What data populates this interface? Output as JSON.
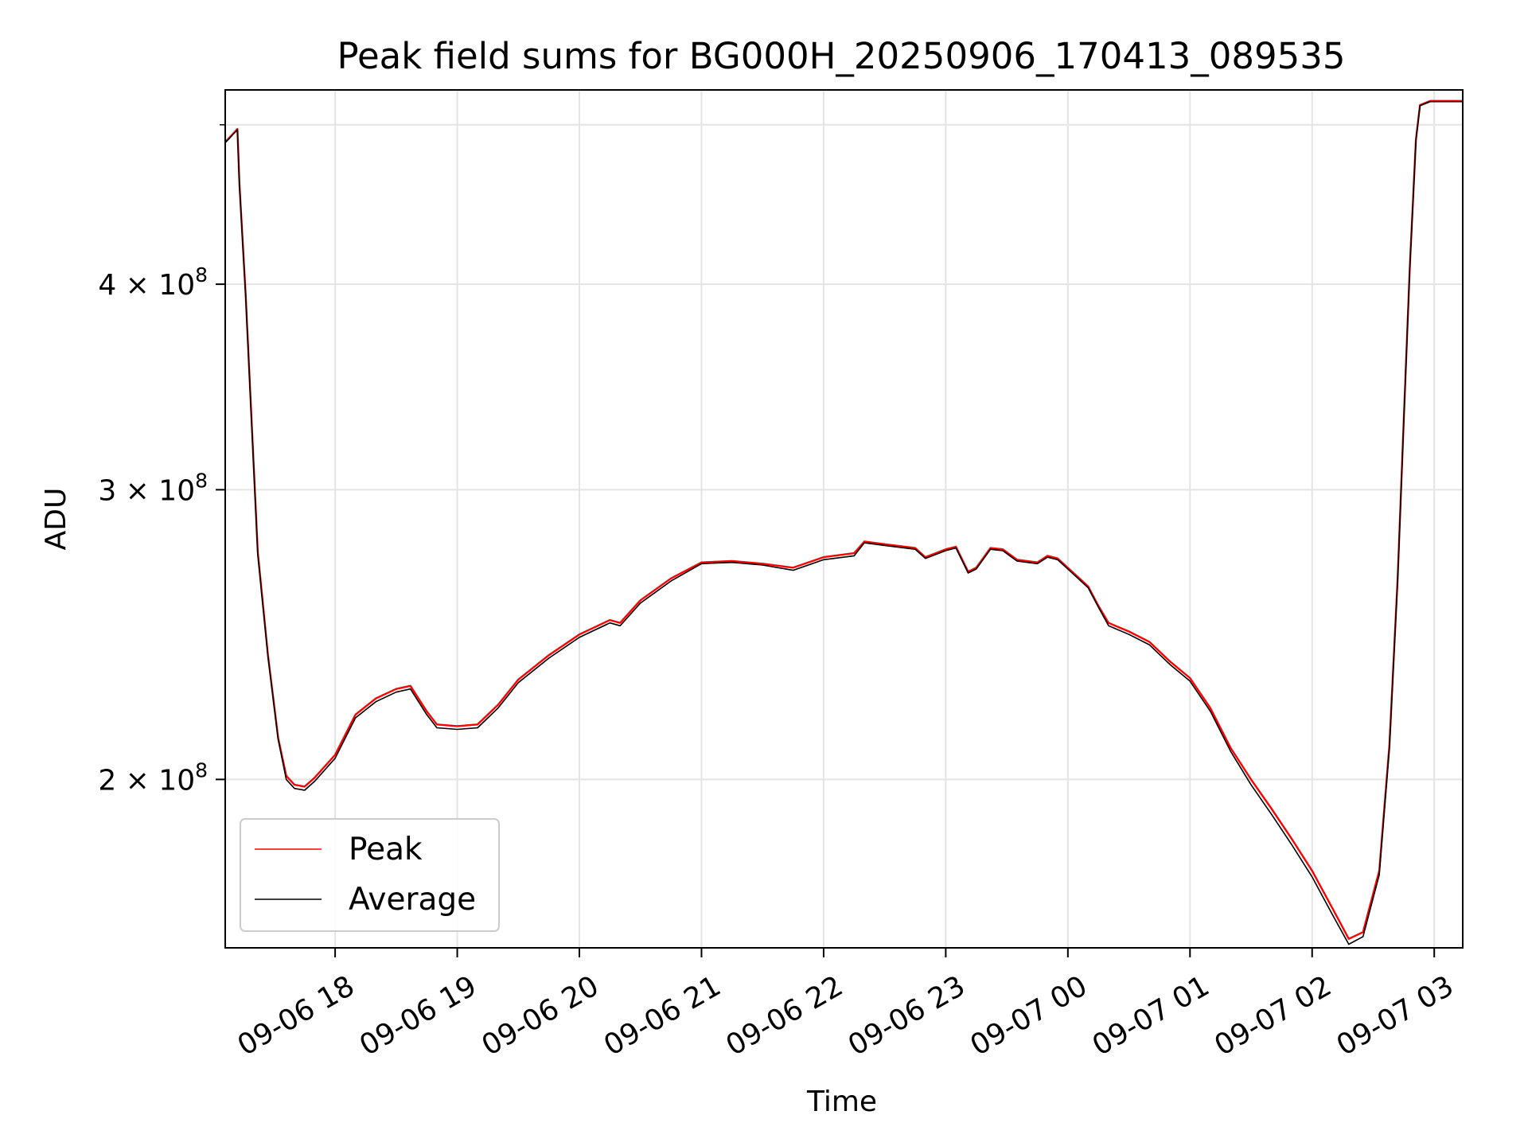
{
  "chart_data": {
    "type": "line",
    "title": "Peak field sums for BG000H_20250906_170413_089535",
    "xlabel": "Time",
    "ylabel": "ADU",
    "y_scale": "log",
    "ylim": [
      158000000,
      525000000
    ],
    "xlim": [
      "2025-09-06 17:06",
      "2025-09-07 03:14"
    ],
    "grid": true,
    "legend_position": "lower-left",
    "x_ticks": [
      {
        "t": "2025-09-06 18:00",
        "label": "09-06 18"
      },
      {
        "t": "2025-09-06 19:00",
        "label": "09-06 19"
      },
      {
        "t": "2025-09-06 20:00",
        "label": "09-06 20"
      },
      {
        "t": "2025-09-06 21:00",
        "label": "09-06 21"
      },
      {
        "t": "2025-09-06 22:00",
        "label": "09-06 22"
      },
      {
        "t": "2025-09-06 23:00",
        "label": "09-06 23"
      },
      {
        "t": "2025-09-07 00:00",
        "label": "09-07 00"
      },
      {
        "t": "2025-09-07 01:00",
        "label": "09-07 01"
      },
      {
        "t": "2025-09-07 02:00",
        "label": "09-07 02"
      },
      {
        "t": "2025-09-07 03:00",
        "label": "09-07 03"
      }
    ],
    "y_ticks": [
      {
        "value": 200000000,
        "mantissa": "2",
        "exponent": "8"
      },
      {
        "value": 300000000,
        "mantissa": "3",
        "exponent": "8"
      },
      {
        "value": 400000000,
        "mantissa": "4",
        "exponent": "8"
      }
    ],
    "y_minor_ticks": [
      500000000
    ],
    "series": [
      {
        "name": "Peak",
        "color": "#ff0000",
        "points": [
          [
            "2025-09-06 17:06",
            488000000
          ],
          [
            "2025-09-06 17:12",
            497000000
          ],
          [
            "2025-09-06 17:13",
            460000000
          ],
          [
            "2025-09-06 17:16",
            395000000
          ],
          [
            "2025-09-06 17:19",
            330000000
          ],
          [
            "2025-09-06 17:22",
            275000000
          ],
          [
            "2025-09-06 17:27",
            238000000
          ],
          [
            "2025-09-06 17:32",
            212000000
          ],
          [
            "2025-09-06 17:36",
            201000000
          ],
          [
            "2025-09-06 17:40",
            198500000
          ],
          [
            "2025-09-06 17:45",
            198000000
          ],
          [
            "2025-09-06 17:50",
            200500000
          ],
          [
            "2025-09-06 18:00",
            207000000
          ],
          [
            "2025-09-06 18:10",
            219000000
          ],
          [
            "2025-09-06 18:20",
            224000000
          ],
          [
            "2025-09-06 18:30",
            227000000
          ],
          [
            "2025-09-06 18:37",
            228000000
          ],
          [
            "2025-09-06 18:45",
            220000000
          ],
          [
            "2025-09-06 18:50",
            216000000
          ],
          [
            "2025-09-06 19:00",
            215500000
          ],
          [
            "2025-09-06 19:10",
            216000000
          ],
          [
            "2025-09-06 19:20",
            222000000
          ],
          [
            "2025-09-06 19:30",
            230000000
          ],
          [
            "2025-09-06 19:45",
            238000000
          ],
          [
            "2025-09-06 20:00",
            245000000
          ],
          [
            "2025-09-06 20:15",
            250000000
          ],
          [
            "2025-09-06 20:20",
            249000000
          ],
          [
            "2025-09-06 20:30",
            257000000
          ],
          [
            "2025-09-06 20:45",
            265000000
          ],
          [
            "2025-09-06 21:00",
            271000000
          ],
          [
            "2025-09-06 21:15",
            271500000
          ],
          [
            "2025-09-06 21:30",
            270500000
          ],
          [
            "2025-09-06 21:45",
            269000000
          ],
          [
            "2025-09-06 22:00",
            273000000
          ],
          [
            "2025-09-06 22:15",
            274500000
          ],
          [
            "2025-09-06 22:20",
            279000000
          ],
          [
            "2025-09-06 22:30",
            278000000
          ],
          [
            "2025-09-06 22:45",
            276500000
          ],
          [
            "2025-09-06 22:50",
            273000000
          ],
          [
            "2025-09-06 23:00",
            276000000
          ],
          [
            "2025-09-06 23:05",
            277000000
          ],
          [
            "2025-09-06 23:11",
            267500000
          ],
          [
            "2025-09-06 23:15",
            269000000
          ],
          [
            "2025-09-06 23:22",
            276500000
          ],
          [
            "2025-09-06 23:28",
            276000000
          ],
          [
            "2025-09-06 23:35",
            272000000
          ],
          [
            "2025-09-06 23:45",
            271000000
          ],
          [
            "2025-09-06 23:50",
            273500000
          ],
          [
            "2025-09-06 23:55",
            272500000
          ],
          [
            "2025-09-07 00:05",
            265500000
          ],
          [
            "2025-09-07 00:10",
            262000000
          ],
          [
            "2025-09-07 00:15",
            255000000
          ],
          [
            "2025-09-07 00:20",
            249000000
          ],
          [
            "2025-09-07 00:30",
            246000000
          ],
          [
            "2025-09-07 00:40",
            242500000
          ],
          [
            "2025-09-07 00:50",
            236000000
          ],
          [
            "2025-09-07 01:00",
            230500000
          ],
          [
            "2025-09-07 01:10",
            221000000
          ],
          [
            "2025-09-07 01:20",
            209000000
          ],
          [
            "2025-09-07 01:30",
            200000000
          ],
          [
            "2025-09-07 01:40",
            192000000
          ],
          [
            "2025-09-07 01:50",
            184000000
          ],
          [
            "2025-09-07 02:00",
            176000000
          ],
          [
            "2025-09-07 02:10",
            167000000
          ],
          [
            "2025-09-07 02:18",
            160000000
          ],
          [
            "2025-09-07 02:25",
            161500000
          ],
          [
            "2025-09-07 02:33",
            176000000
          ],
          [
            "2025-09-07 02:38",
            210000000
          ],
          [
            "2025-09-07 02:42",
            265000000
          ],
          [
            "2025-09-07 02:45",
            330000000
          ],
          [
            "2025-09-07 02:48",
            410000000
          ],
          [
            "2025-09-07 02:51",
            490000000
          ],
          [
            "2025-09-07 02:53",
            514000000
          ],
          [
            "2025-09-07 02:58",
            517000000
          ],
          [
            "2025-09-07 03:14",
            517000000
          ]
        ]
      },
      {
        "name": "Average",
        "color": "#000000",
        "points": [
          [
            "2025-09-06 17:06",
            487500000
          ],
          [
            "2025-09-06 17:12",
            496500000
          ],
          [
            "2025-09-06 17:13",
            459000000
          ],
          [
            "2025-09-06 17:16",
            394000000
          ],
          [
            "2025-09-06 17:19",
            329000000
          ],
          [
            "2025-09-06 17:22",
            274000000
          ],
          [
            "2025-09-06 17:27",
            237500000
          ],
          [
            "2025-09-06 17:32",
            211500000
          ],
          [
            "2025-09-06 17:36",
            200000000
          ],
          [
            "2025-09-06 17:40",
            197500000
          ],
          [
            "2025-09-06 17:45",
            197000000
          ],
          [
            "2025-09-06 17:50",
            199500000
          ],
          [
            "2025-09-06 18:00",
            206000000
          ],
          [
            "2025-09-06 18:10",
            218000000
          ],
          [
            "2025-09-06 18:20",
            223000000
          ],
          [
            "2025-09-06 18:30",
            226000000
          ],
          [
            "2025-09-06 18:37",
            227000000
          ],
          [
            "2025-09-06 18:45",
            219000000
          ],
          [
            "2025-09-06 18:50",
            215000000
          ],
          [
            "2025-09-06 19:00",
            214500000
          ],
          [
            "2025-09-06 19:10",
            215000000
          ],
          [
            "2025-09-06 19:20",
            221000000
          ],
          [
            "2025-09-06 19:30",
            229000000
          ],
          [
            "2025-09-06 19:45",
            237000000
          ],
          [
            "2025-09-06 20:00",
            244000000
          ],
          [
            "2025-09-06 20:15",
            249000000
          ],
          [
            "2025-09-06 20:20",
            248000000
          ],
          [
            "2025-09-06 20:30",
            256000000
          ],
          [
            "2025-09-06 20:45",
            264000000
          ],
          [
            "2025-09-06 21:00",
            270500000
          ],
          [
            "2025-09-06 21:15",
            271000000
          ],
          [
            "2025-09-06 21:30",
            270000000
          ],
          [
            "2025-09-06 21:45",
            268000000
          ],
          [
            "2025-09-06 22:00",
            272000000
          ],
          [
            "2025-09-06 22:15",
            273500000
          ],
          [
            "2025-09-06 22:20",
            278500000
          ],
          [
            "2025-09-06 22:30",
            277500000
          ],
          [
            "2025-09-06 22:45",
            276000000
          ],
          [
            "2025-09-06 22:50",
            272500000
          ],
          [
            "2025-09-06 23:00",
            275500000
          ],
          [
            "2025-09-06 23:05",
            276500000
          ],
          [
            "2025-09-06 23:11",
            267000000
          ],
          [
            "2025-09-06 23:15",
            268500000
          ],
          [
            "2025-09-06 23:22",
            276000000
          ],
          [
            "2025-09-06 23:28",
            275500000
          ],
          [
            "2025-09-06 23:35",
            271500000
          ],
          [
            "2025-09-06 23:45",
            270500000
          ],
          [
            "2025-09-06 23:50",
            273000000
          ],
          [
            "2025-09-06 23:55",
            272000000
          ],
          [
            "2025-09-07 00:05",
            265000000
          ],
          [
            "2025-09-07 00:10",
            261500000
          ],
          [
            "2025-09-07 00:15",
            254500000
          ],
          [
            "2025-09-07 00:20",
            248000000
          ],
          [
            "2025-09-07 00:30",
            245000000
          ],
          [
            "2025-09-07 00:40",
            241500000
          ],
          [
            "2025-09-07 00:50",
            235000000
          ],
          [
            "2025-09-07 01:00",
            229500000
          ],
          [
            "2025-09-07 01:10",
            220000000
          ],
          [
            "2025-09-07 01:20",
            208000000
          ],
          [
            "2025-09-07 01:30",
            198500000
          ],
          [
            "2025-09-07 01:40",
            190500000
          ],
          [
            "2025-09-07 01:50",
            182500000
          ],
          [
            "2025-09-07 02:00",
            174500000
          ],
          [
            "2025-09-07 02:10",
            165500000
          ],
          [
            "2025-09-07 02:18",
            158800000
          ],
          [
            "2025-09-07 02:25",
            160500000
          ],
          [
            "2025-09-07 02:33",
            175000000
          ],
          [
            "2025-09-07 02:38",
            209000000
          ],
          [
            "2025-09-07 02:42",
            264000000
          ],
          [
            "2025-09-07 02:45",
            329000000
          ],
          [
            "2025-09-07 02:48",
            409000000
          ],
          [
            "2025-09-07 02:51",
            489000000
          ],
          [
            "2025-09-07 02:53",
            513500000
          ],
          [
            "2025-09-07 02:58",
            516500000
          ],
          [
            "2025-09-07 03:14",
            516500000
          ]
        ]
      }
    ]
  }
}
